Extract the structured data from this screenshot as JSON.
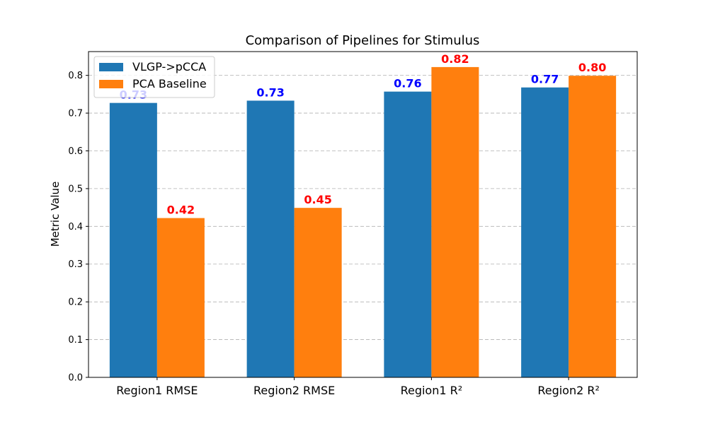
{
  "chart_data": {
    "type": "bar",
    "title": "Comparison of Pipelines for Stimulus",
    "xlabel": "",
    "ylabel": "Metric Value",
    "categories": [
      "Region1 RMSE",
      "Region2 RMSE",
      "Region1 R²",
      "Region2 R²"
    ],
    "series": [
      {
        "name": "VLGP->pCCA",
        "color": "#1f77b4",
        "label_color": "#0000ff",
        "values": [
          0.727,
          0.733,
          0.757,
          0.768
        ],
        "labels": [
          "0.73",
          "0.73",
          "0.76",
          "0.77"
        ]
      },
      {
        "name": "PCA Baseline",
        "color": "#ff7f0e",
        "label_color": "#ff0000",
        "values": [
          0.422,
          0.449,
          0.822,
          0.799
        ],
        "labels": [
          "0.42",
          "0.45",
          "0.82",
          "0.80"
        ]
      }
    ],
    "ylim": [
      0,
      0.863
    ],
    "yticks": [
      0.0,
      0.1,
      0.2,
      0.3,
      0.4,
      0.5,
      0.6,
      0.7,
      0.8
    ],
    "ytick_labels": [
      "0.0",
      "0.1",
      "0.2",
      "0.3",
      "0.4",
      "0.5",
      "0.6",
      "0.7",
      "0.8"
    ],
    "grid": true,
    "legend_position": "top-left"
  }
}
